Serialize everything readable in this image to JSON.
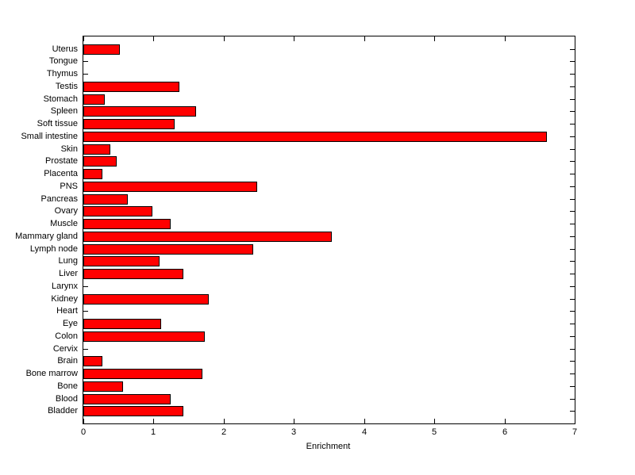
{
  "figure": {
    "background_color": "#FFFFFF",
    "bar_fill_color": "#FF0000",
    "bar_border_color": "#000000",
    "axis_color": "#000000"
  },
  "chart_data": {
    "type": "bar",
    "orientation": "horizontal",
    "title": "",
    "xlabel": "Enrichment",
    "ylabel": "",
    "xlim": [
      0,
      7
    ],
    "xticks": [
      0,
      1,
      2,
      3,
      4,
      5,
      6,
      7
    ],
    "grid": false,
    "legend": null,
    "categories_top_to_bottom": [
      "Uterus",
      "Tongue",
      "Thymus",
      "Testis",
      "Stomach",
      "Spleen",
      "Soft tissue",
      "Small intestine",
      "Skin",
      "Prostate",
      "Placenta",
      "PNS",
      "Pancreas",
      "Ovary",
      "Muscle",
      "Mammary gland",
      "Lymph node",
      "Lung",
      "Liver",
      "Larynx",
      "Kidney",
      "Heart",
      "Eye",
      "Colon",
      "Cervix",
      "Brain",
      "Bone marrow",
      "Bone",
      "Blood",
      "Bladder"
    ],
    "values": [
      0.52,
      0,
      0,
      1.37,
      0.3,
      1.61,
      1.3,
      6.6,
      0.38,
      0.47,
      0.27,
      2.48,
      0.63,
      0.98,
      1.24,
      3.54,
      2.42,
      1.08,
      1.42,
      0,
      1.79,
      0,
      1.11,
      1.73,
      0,
      0.27,
      1.7,
      0.56,
      1.24,
      1.42
    ]
  }
}
